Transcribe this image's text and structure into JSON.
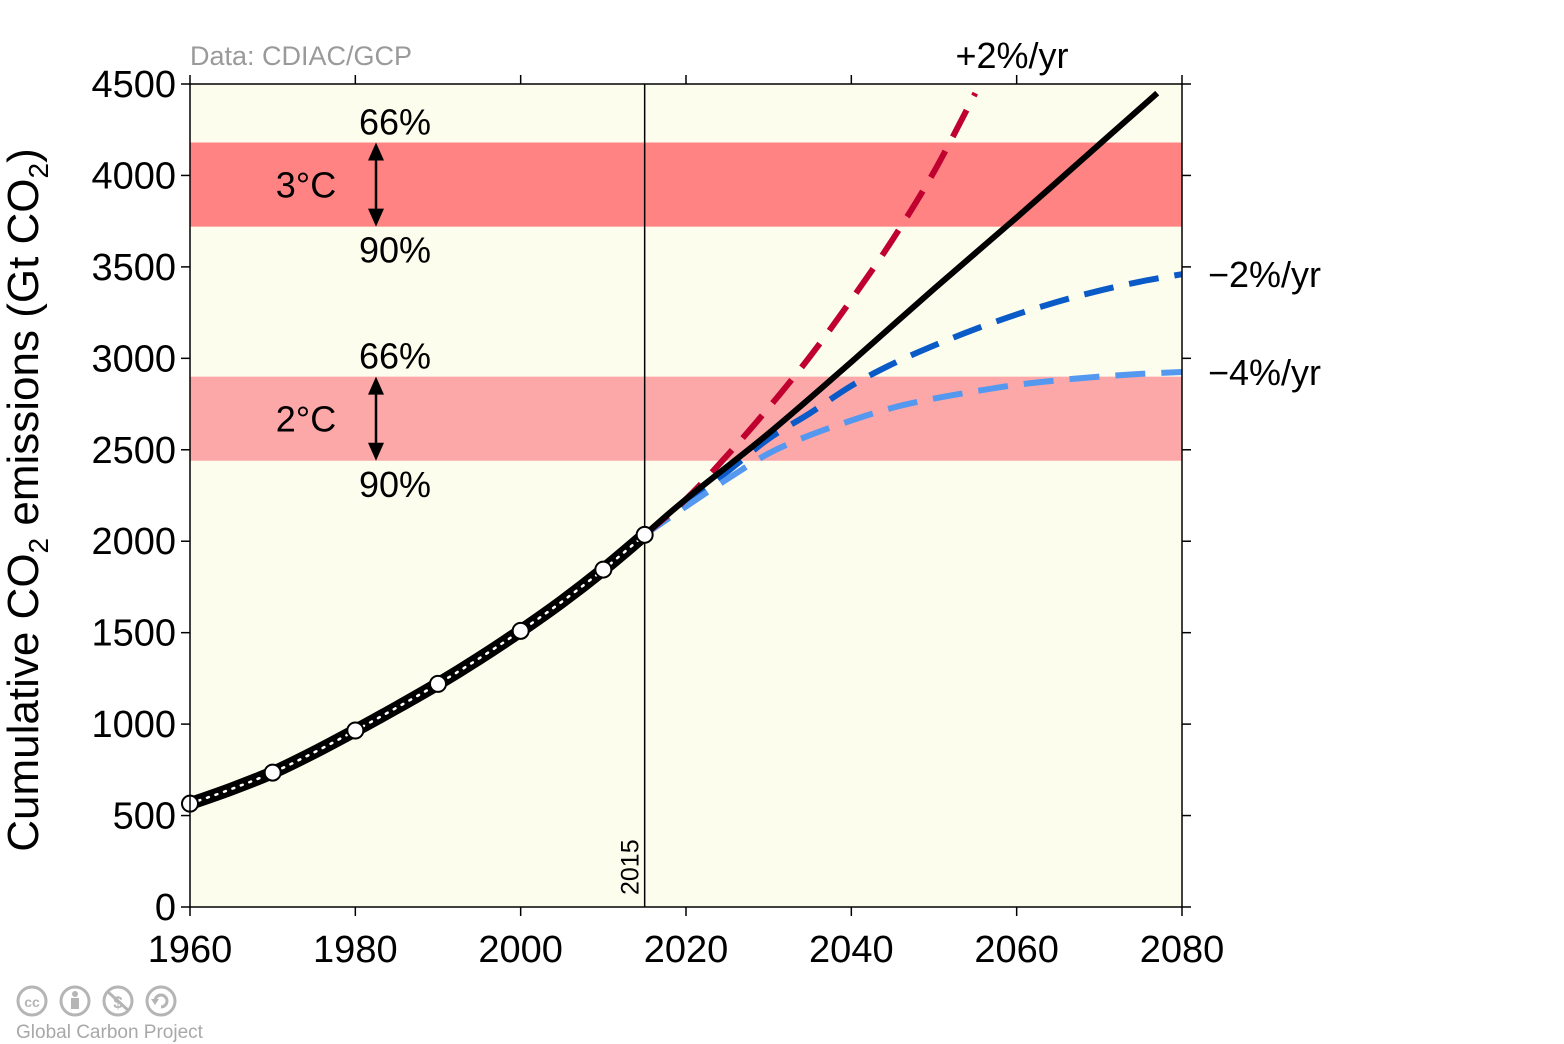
{
  "source_note": "Data: CDIAC/GCP",
  "credit": "Global Carbon Project",
  "credit_icons": [
    "cc-icon",
    "by-icon",
    "nc-icon",
    "sa-icon"
  ],
  "colors": {
    "plot_background": "#fdfdee",
    "band_3c": "#ff8383",
    "band_2c": "#fda8a8",
    "historical": "#000000",
    "plus2": "#c0002f",
    "minus2": "#0a5ac8",
    "minus4": "#5598ef"
  },
  "chart_data": {
    "type": "line",
    "title": "",
    "xlabel": "",
    "ylabel": "Cumulative CO2 emissions (Gt CO2)",
    "ylabel_parts": [
      "Cumulative CO",
      "2",
      " emissions (Gt CO",
      "2",
      ")"
    ],
    "xlim": [
      1960,
      2080
    ],
    "ylim": [
      0,
      4500
    ],
    "xticks": [
      1960,
      1980,
      2000,
      2020,
      2040,
      2060,
      2080
    ],
    "xtick_labels": [
      "1960",
      "1980",
      "2000",
      "2020",
      "2040",
      "2060",
      "2080"
    ],
    "yticks": [
      0,
      500,
      1000,
      1500,
      2000,
      2500,
      3000,
      3500,
      4000,
      4500
    ],
    "ytick_labels": [
      "0",
      "500",
      "1000",
      "1500",
      "2000",
      "2500",
      "3000",
      "3500",
      "4000",
      "4500"
    ],
    "grid": false,
    "reference_line": {
      "x": 2015,
      "label": "2015"
    },
    "bands": [
      {
        "label": "3°C",
        "y_from": 3720,
        "y_to": 4180,
        "top_label": "66%",
        "bottom_label": "90%",
        "color": "#ff8383"
      },
      {
        "label": "2°C",
        "y_from": 2440,
        "y_to": 2900,
        "top_label": "66%",
        "bottom_label": "90%",
        "color": "#fda8a8"
      }
    ],
    "series": [
      {
        "kind": "historical",
        "color": "#000000",
        "x": [
          1960,
          1965,
          1970,
          1975,
          1980,
          1985,
          1990,
          1995,
          2000,
          2005,
          2010,
          2015
        ],
        "y": [
          565,
          645,
          735,
          845,
          965,
          1090,
          1220,
          1360,
          1510,
          1670,
          1845,
          2035
        ],
        "markers_x": [
          1960,
          1970,
          1980,
          1990,
          2000,
          2010,
          2015
        ],
        "markers_y": [
          565,
          735,
          965,
          1220,
          1510,
          1845,
          2035
        ]
      },
      {
        "name": "+2%/yr",
        "color": "#c0002f",
        "dashed": true,
        "x": [
          2015,
          2020,
          2025,
          2030,
          2035,
          2040,
          2045,
          2050,
          2055
        ],
        "y": [
          2035,
          2230,
          2470,
          2730,
          3010,
          3320,
          3650,
          4020,
          4450
        ]
      },
      {
        "name": "",
        "color": "#000000",
        "dashed": false,
        "x": [
          2015,
          2020,
          2030,
          2040,
          2050,
          2060,
          2070,
          2077
        ],
        "y": [
          2035,
          2230,
          2590,
          2980,
          3380,
          3770,
          4170,
          4450
        ]
      },
      {
        "name": "−2%/yr",
        "color": "#0a5ac8",
        "dashed": true,
        "x": [
          2015,
          2020,
          2025,
          2030,
          2035,
          2040,
          2045,
          2050,
          2055,
          2060,
          2065,
          2070,
          2075,
          2080
        ],
        "y": [
          2035,
          2210,
          2380,
          2560,
          2700,
          2850,
          2970,
          3070,
          3160,
          3240,
          3310,
          3370,
          3420,
          3460
        ]
      },
      {
        "name": "−4%/yr",
        "color": "#5598ef",
        "dashed": true,
        "x": [
          2015,
          2020,
          2025,
          2030,
          2035,
          2040,
          2045,
          2050,
          2055,
          2060,
          2065,
          2070,
          2075,
          2080
        ],
        "y": [
          2035,
          2190,
          2340,
          2480,
          2580,
          2660,
          2730,
          2780,
          2820,
          2855,
          2880,
          2900,
          2915,
          2925
        ]
      }
    ]
  }
}
